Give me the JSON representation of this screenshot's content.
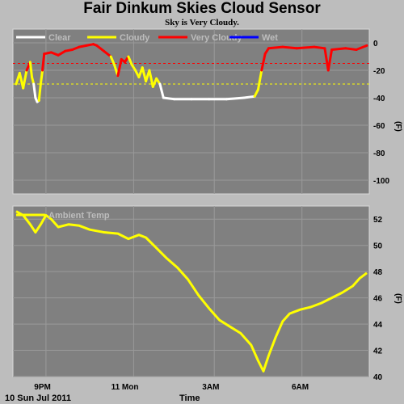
{
  "title": "Fair Dinkum Skies Cloud Sensor",
  "subtitle": "Sky is Very Cloudy.",
  "colors": {
    "clear": "#ffffff",
    "cloudy": "#ffff00",
    "very_cloudy": "#ff0000",
    "wet": "#0000ff",
    "ambient": "#ffff00",
    "threshold_very_cloudy": "#ff0000",
    "threshold_cloudy": "#ffff00"
  },
  "footer": {
    "date": "10 Sun Jul 2011",
    "xlabel": "Time"
  },
  "x_ticks": [
    "9PM",
    "11 Mon",
    "3AM",
    "6AM"
  ],
  "chart_data": [
    {
      "type": "line",
      "name": "sky-temperature",
      "ylabel": "(F)",
      "ylim": [
        -110,
        10
      ],
      "y_ticks": [
        0,
        -20,
        -40,
        -60,
        -80,
        -100
      ],
      "grid": true,
      "legend": [
        "Clear",
        "Cloudy",
        "Very Cloudy",
        "Wet"
      ],
      "legend_placement": "top-left",
      "thresholds": {
        "very_cloudy": -15,
        "cloudy": -30
      },
      "series_points": [
        {
          "x": 0.0,
          "y": -30,
          "s": "cloudy"
        },
        {
          "x": 0.01,
          "y": -22,
          "s": "cloudy"
        },
        {
          "x": 0.02,
          "y": -33,
          "s": "cloudy"
        },
        {
          "x": 0.03,
          "y": -20,
          "s": "cloudy"
        },
        {
          "x": 0.04,
          "y": -14,
          "s": "very_cloudy"
        },
        {
          "x": 0.045,
          "y": -25,
          "s": "cloudy"
        },
        {
          "x": 0.05,
          "y": -30,
          "s": "cloudy"
        },
        {
          "x": 0.055,
          "y": -40,
          "s": "clear"
        },
        {
          "x": 0.06,
          "y": -43,
          "s": "clear"
        },
        {
          "x": 0.065,
          "y": -42,
          "s": "clear"
        },
        {
          "x": 0.07,
          "y": -30,
          "s": "cloudy"
        },
        {
          "x": 0.075,
          "y": -20,
          "s": "cloudy"
        },
        {
          "x": 0.08,
          "y": -8,
          "s": "very_cloudy"
        },
        {
          "x": 0.1,
          "y": -7,
          "s": "very_cloudy"
        },
        {
          "x": 0.12,
          "y": -9,
          "s": "very_cloudy"
        },
        {
          "x": 0.14,
          "y": -6,
          "s": "very_cloudy"
        },
        {
          "x": 0.16,
          "y": -5,
          "s": "very_cloudy"
        },
        {
          "x": 0.18,
          "y": -3,
          "s": "very_cloudy"
        },
        {
          "x": 0.2,
          "y": -2,
          "s": "very_cloudy"
        },
        {
          "x": 0.22,
          "y": -1,
          "s": "very_cloudy"
        },
        {
          "x": 0.23,
          "y": -2,
          "s": "very_cloudy"
        },
        {
          "x": 0.25,
          "y": -6,
          "s": "very_cloudy"
        },
        {
          "x": 0.27,
          "y": -10,
          "s": "very_cloudy"
        },
        {
          "x": 0.28,
          "y": -16,
          "s": "cloudy"
        },
        {
          "x": 0.29,
          "y": -24,
          "s": "cloudy"
        },
        {
          "x": 0.3,
          "y": -12,
          "s": "very_cloudy"
        },
        {
          "x": 0.31,
          "y": -14,
          "s": "very_cloudy"
        },
        {
          "x": 0.32,
          "y": -10,
          "s": "very_cloudy"
        },
        {
          "x": 0.33,
          "y": -16,
          "s": "cloudy"
        },
        {
          "x": 0.34,
          "y": -20,
          "s": "cloudy"
        },
        {
          "x": 0.35,
          "y": -25,
          "s": "cloudy"
        },
        {
          "x": 0.36,
          "y": -18,
          "s": "cloudy"
        },
        {
          "x": 0.37,
          "y": -28,
          "s": "cloudy"
        },
        {
          "x": 0.38,
          "y": -20,
          "s": "cloudy"
        },
        {
          "x": 0.39,
          "y": -32,
          "s": "cloudy"
        },
        {
          "x": 0.4,
          "y": -26,
          "s": "cloudy"
        },
        {
          "x": 0.41,
          "y": -30,
          "s": "cloudy"
        },
        {
          "x": 0.42,
          "y": -40,
          "s": "clear"
        },
        {
          "x": 0.45,
          "y": -41,
          "s": "clear"
        },
        {
          "x": 0.5,
          "y": -41,
          "s": "clear"
        },
        {
          "x": 0.55,
          "y": -41,
          "s": "clear"
        },
        {
          "x": 0.6,
          "y": -41,
          "s": "clear"
        },
        {
          "x": 0.65,
          "y": -40,
          "s": "clear"
        },
        {
          "x": 0.68,
          "y": -39,
          "s": "clear"
        },
        {
          "x": 0.69,
          "y": -34,
          "s": "cloudy"
        },
        {
          "x": 0.7,
          "y": -20,
          "s": "cloudy"
        },
        {
          "x": 0.71,
          "y": -8,
          "s": "very_cloudy"
        },
        {
          "x": 0.72,
          "y": -4,
          "s": "very_cloudy"
        },
        {
          "x": 0.76,
          "y": -3,
          "s": "very_cloudy"
        },
        {
          "x": 0.8,
          "y": -4,
          "s": "very_cloudy"
        },
        {
          "x": 0.85,
          "y": -3,
          "s": "very_cloudy"
        },
        {
          "x": 0.88,
          "y": -4,
          "s": "very_cloudy"
        },
        {
          "x": 0.89,
          "y": -20,
          "s": "very_cloudy"
        },
        {
          "x": 0.9,
          "y": -5,
          "s": "very_cloudy"
        },
        {
          "x": 0.94,
          "y": -4,
          "s": "very_cloudy"
        },
        {
          "x": 0.97,
          "y": -5,
          "s": "very_cloudy"
        },
        {
          "x": 1.0,
          "y": -2,
          "s": "very_cloudy"
        }
      ]
    },
    {
      "type": "line",
      "name": "ambient-temperature",
      "ylabel": "(F)",
      "ylim": [
        40,
        53
      ],
      "y_ticks": [
        52,
        50,
        48,
        46,
        44,
        42,
        40
      ],
      "grid": true,
      "legend": [
        "Ambient Temp"
      ],
      "legend_placement": "top-left",
      "points": [
        {
          "x": 0.0,
          "y": 52.6
        },
        {
          "x": 0.02,
          "y": 52.3
        },
        {
          "x": 0.04,
          "y": 51.6
        },
        {
          "x": 0.055,
          "y": 51.0
        },
        {
          "x": 0.07,
          "y": 51.6
        },
        {
          "x": 0.085,
          "y": 52.3
        },
        {
          "x": 0.1,
          "y": 52.0
        },
        {
          "x": 0.12,
          "y": 51.4
        },
        {
          "x": 0.15,
          "y": 51.6
        },
        {
          "x": 0.18,
          "y": 51.5
        },
        {
          "x": 0.21,
          "y": 51.2
        },
        {
          "x": 0.25,
          "y": 51.0
        },
        {
          "x": 0.29,
          "y": 50.9
        },
        {
          "x": 0.32,
          "y": 50.5
        },
        {
          "x": 0.35,
          "y": 50.8
        },
        {
          "x": 0.37,
          "y": 50.6
        },
        {
          "x": 0.4,
          "y": 49.8
        },
        {
          "x": 0.43,
          "y": 49.0
        },
        {
          "x": 0.46,
          "y": 48.3
        },
        {
          "x": 0.49,
          "y": 47.4
        },
        {
          "x": 0.52,
          "y": 46.2
        },
        {
          "x": 0.55,
          "y": 45.2
        },
        {
          "x": 0.58,
          "y": 44.3
        },
        {
          "x": 0.61,
          "y": 43.8
        },
        {
          "x": 0.64,
          "y": 43.3
        },
        {
          "x": 0.67,
          "y": 42.4
        },
        {
          "x": 0.69,
          "y": 41.2
        },
        {
          "x": 0.705,
          "y": 40.4
        },
        {
          "x": 0.72,
          "y": 41.6
        },
        {
          "x": 0.74,
          "y": 43.0
        },
        {
          "x": 0.76,
          "y": 44.2
        },
        {
          "x": 0.78,
          "y": 44.8
        },
        {
          "x": 0.81,
          "y": 45.1
        },
        {
          "x": 0.84,
          "y": 45.3
        },
        {
          "x": 0.87,
          "y": 45.6
        },
        {
          "x": 0.9,
          "y": 46.0
        },
        {
          "x": 0.93,
          "y": 46.4
        },
        {
          "x": 0.96,
          "y": 46.9
        },
        {
          "x": 0.98,
          "y": 47.5
        },
        {
          "x": 1.0,
          "y": 47.9
        }
      ]
    }
  ]
}
